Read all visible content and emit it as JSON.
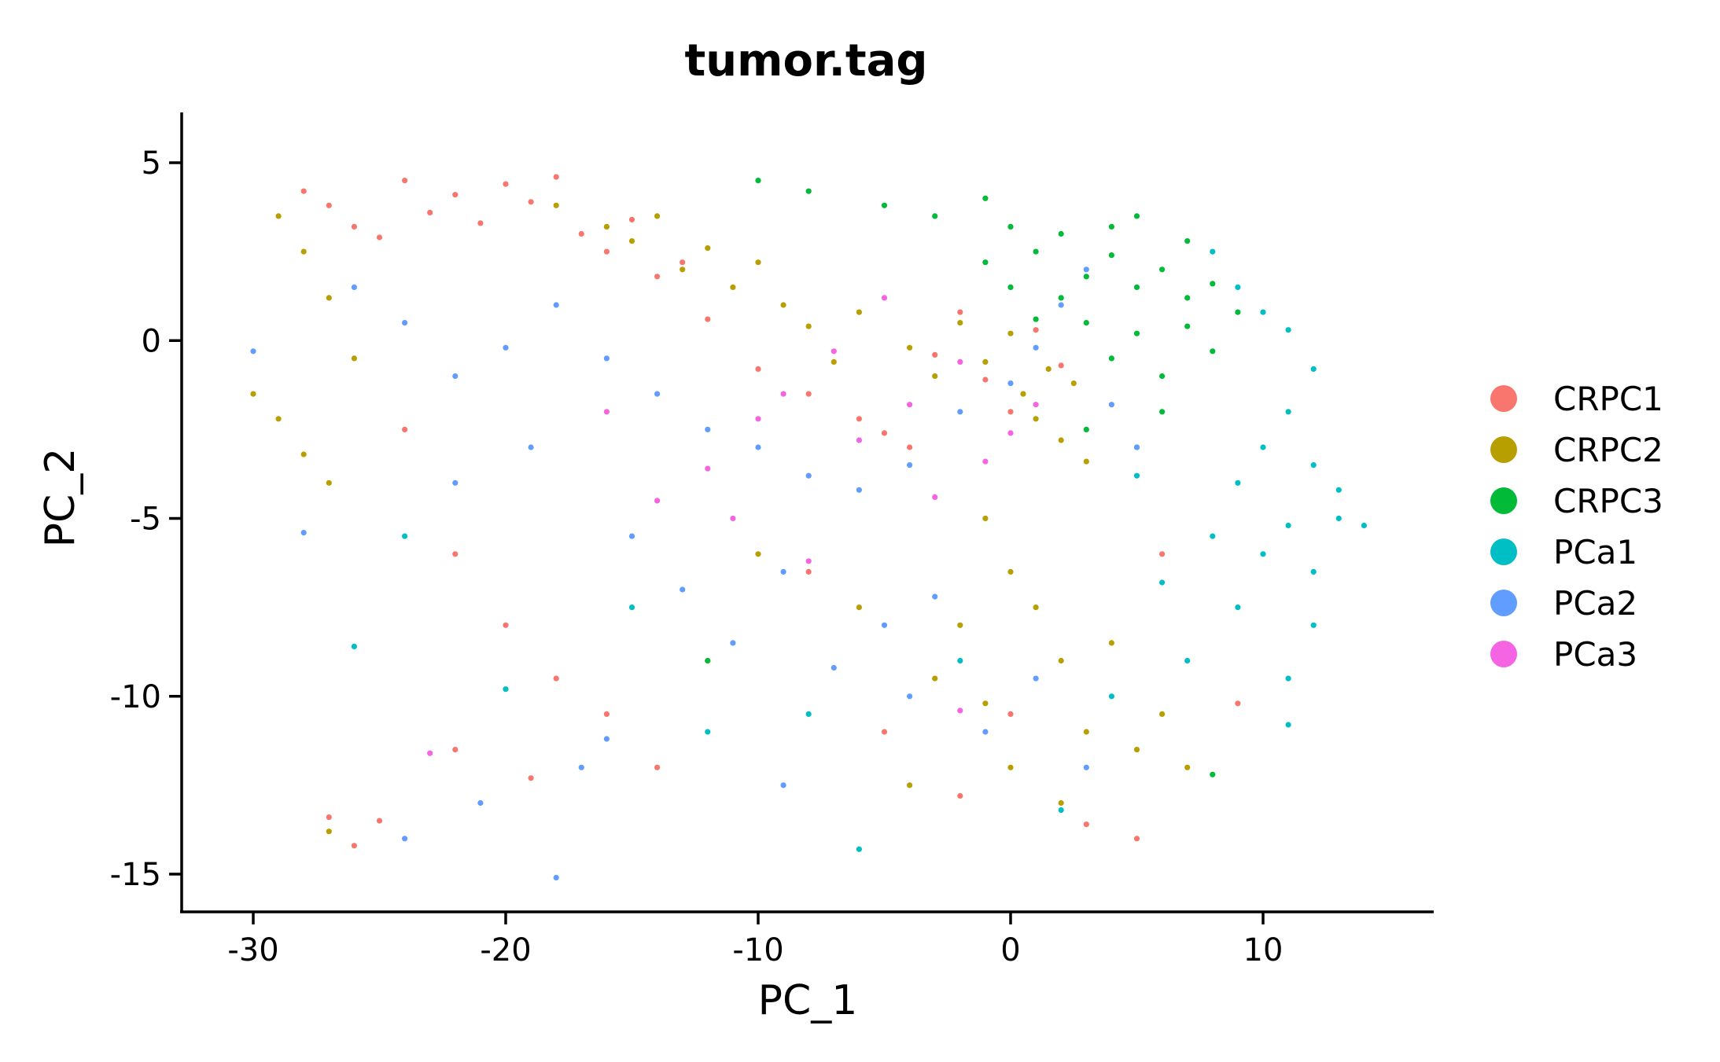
{
  "chart_data": {
    "type": "scatter",
    "title": "tumor.tag",
    "xlabel": "PC_1",
    "ylabel": "PC_2",
    "xlim": [
      -33,
      17
    ],
    "ylim": [
      -16.2,
      6.5
    ],
    "xticks": [
      -30,
      -20,
      -10,
      0,
      10
    ],
    "yticks": [
      5,
      0,
      -5,
      -10,
      -15
    ],
    "grid": false,
    "legend_position": "right",
    "series": [
      {
        "name": "CRPC1",
        "color": "#F8766D",
        "points": [
          [
            -28,
            4.2
          ],
          [
            -27,
            3.8
          ],
          [
            -26,
            3.2
          ],
          [
            -25,
            2.9
          ],
          [
            -24,
            4.5
          ],
          [
            -23,
            3.6
          ],
          [
            -22,
            4.1
          ],
          [
            -21,
            3.3
          ],
          [
            -20,
            4.4
          ],
          [
            -19,
            3.9
          ],
          [
            -18,
            4.6
          ],
          [
            -17,
            3.0
          ],
          [
            -16,
            2.5
          ],
          [
            -15,
            3.4
          ],
          [
            -14,
            1.8
          ],
          [
            -13,
            2.2
          ],
          [
            -12,
            0.6
          ],
          [
            -10,
            -0.8
          ],
          [
            -8,
            -1.5
          ],
          [
            -6,
            -2.2
          ],
          [
            -5,
            -2.6
          ],
          [
            -4,
            -3.0
          ],
          [
            -3,
            -0.4
          ],
          [
            -2,
            0.8
          ],
          [
            -1,
            -1.1
          ],
          [
            0,
            -2.0
          ],
          [
            1,
            0.3
          ],
          [
            2,
            -0.7
          ],
          [
            -24,
            -2.5
          ],
          [
            -22,
            -6.0
          ],
          [
            -20,
            -8.0
          ],
          [
            -18,
            -9.5
          ],
          [
            -16,
            -10.5
          ],
          [
            -14,
            -12.0
          ],
          [
            -25,
            -13.5
          ],
          [
            -26,
            -14.2
          ],
          [
            -27,
            -13.4
          ],
          [
            -22,
            -11.5
          ],
          [
            -19,
            -12.3
          ],
          [
            -12,
            -9.0
          ],
          [
            -8,
            -6.5
          ],
          [
            -5,
            -11.0
          ],
          [
            -2,
            -12.8
          ],
          [
            0,
            -10.5
          ],
          [
            3,
            -13.6
          ],
          [
            5,
            -14.0
          ],
          [
            6,
            -6.0
          ],
          [
            9,
            -10.2
          ]
        ]
      },
      {
        "name": "CRPC2",
        "color": "#B79F00",
        "points": [
          [
            -29,
            3.5
          ],
          [
            -28,
            2.5
          ],
          [
            -27,
            1.2
          ],
          [
            -26,
            -0.5
          ],
          [
            -30,
            -1.5
          ],
          [
            -29,
            -2.2
          ],
          [
            -28,
            -3.2
          ],
          [
            -27,
            -4.0
          ],
          [
            -18,
            3.8
          ],
          [
            -16,
            3.2
          ],
          [
            -15,
            2.8
          ],
          [
            -14,
            3.5
          ],
          [
            -13,
            2.0
          ],
          [
            -12,
            2.6
          ],
          [
            -11,
            1.5
          ],
          [
            -10,
            2.2
          ],
          [
            -9,
            1.0
          ],
          [
            -8,
            0.4
          ],
          [
            -7,
            -0.6
          ],
          [
            -6,
            0.8
          ],
          [
            -4,
            -0.2
          ],
          [
            -3,
            -1.0
          ],
          [
            -2,
            0.5
          ],
          [
            -1,
            -0.6
          ],
          [
            0,
            0.2
          ],
          [
            0.5,
            -1.5
          ],
          [
            1,
            -2.2
          ],
          [
            1.5,
            -0.8
          ],
          [
            2,
            -2.8
          ],
          [
            2.5,
            -1.2
          ],
          [
            3,
            -3.4
          ],
          [
            -1,
            -5.0
          ],
          [
            0,
            -6.5
          ],
          [
            1,
            -7.5
          ],
          [
            -2,
            -8.0
          ],
          [
            2,
            -9.0
          ],
          [
            -3,
            -9.5
          ],
          [
            4,
            -8.5
          ],
          [
            -1,
            -10.2
          ],
          [
            3,
            -11.0
          ],
          [
            0,
            -12.0
          ],
          [
            5,
            -11.5
          ],
          [
            -4,
            -12.5
          ],
          [
            2,
            -13.0
          ],
          [
            6,
            -10.5
          ],
          [
            7,
            -12.0
          ],
          [
            -27,
            -13.8
          ],
          [
            -10,
            -6.0
          ],
          [
            -6,
            -7.5
          ]
        ]
      },
      {
        "name": "CRPC3",
        "color": "#00BA38",
        "points": [
          [
            -10,
            4.5
          ],
          [
            -8,
            4.2
          ],
          [
            -5,
            3.8
          ],
          [
            -3,
            3.5
          ],
          [
            -1,
            4.0
          ],
          [
            0,
            3.2
          ],
          [
            1,
            2.5
          ],
          [
            2,
            3.0
          ],
          [
            3,
            1.8
          ],
          [
            4,
            2.4
          ],
          [
            5,
            1.5
          ],
          [
            6,
            2.0
          ],
          [
            7,
            1.2
          ],
          [
            8,
            1.6
          ],
          [
            9,
            0.8
          ],
          [
            3,
            0.5
          ],
          [
            4,
            -0.5
          ],
          [
            5,
            0.2
          ],
          [
            6,
            -1.0
          ],
          [
            7,
            0.4
          ],
          [
            8,
            -0.3
          ],
          [
            2,
            1.2
          ],
          [
            1,
            0.6
          ],
          [
            0,
            1.5
          ],
          [
            -1,
            2.2
          ],
          [
            5,
            3.5
          ],
          [
            7,
            2.8
          ],
          [
            4,
            3.2
          ],
          [
            6,
            -2.0
          ],
          [
            3,
            -2.5
          ],
          [
            -12,
            -9.0
          ],
          [
            8,
            -12.2
          ],
          [
            5,
            -3.0
          ]
        ]
      },
      {
        "name": "PCa1",
        "color": "#00BFC4",
        "points": [
          [
            8,
            2.5
          ],
          [
            9,
            1.5
          ],
          [
            10,
            0.8
          ],
          [
            11,
            0.3
          ],
          [
            12,
            -0.8
          ],
          [
            11,
            -2.0
          ],
          [
            12,
            -3.5
          ],
          [
            13,
            -4.2
          ],
          [
            10,
            -3.0
          ],
          [
            9,
            -4.0
          ],
          [
            11,
            -5.2
          ],
          [
            12,
            -6.5
          ],
          [
            10,
            -6.0
          ],
          [
            13,
            -5.0
          ],
          [
            14,
            -5.2
          ],
          [
            12,
            -8.0
          ],
          [
            11,
            -9.5
          ],
          [
            8,
            -5.5
          ],
          [
            6,
            -6.8
          ],
          [
            5,
            -3.8
          ],
          [
            -26,
            -8.6
          ],
          [
            -24,
            -5.5
          ],
          [
            -20,
            -9.8
          ],
          [
            -15,
            -7.5
          ],
          [
            -12,
            -11.0
          ],
          [
            -8,
            -10.5
          ],
          [
            -6,
            -14.3
          ],
          [
            -2,
            -9.0
          ],
          [
            2,
            -13.2
          ],
          [
            4,
            -10.0
          ],
          [
            11,
            -10.8
          ],
          [
            7,
            -9.0
          ],
          [
            9,
            -7.5
          ]
        ]
      },
      {
        "name": "PCa2",
        "color": "#619CFF",
        "points": [
          [
            -30,
            -0.3
          ],
          [
            -28,
            -5.4
          ],
          [
            -26,
            1.5
          ],
          [
            -24,
            0.5
          ],
          [
            -22,
            -1.0
          ],
          [
            -20,
            -0.2
          ],
          [
            -18,
            1.0
          ],
          [
            -16,
            -0.5
          ],
          [
            -14,
            -1.5
          ],
          [
            -12,
            -2.5
          ],
          [
            -10,
            -3.0
          ],
          [
            -8,
            -3.8
          ],
          [
            -6,
            -4.2
          ],
          [
            -4,
            -3.5
          ],
          [
            -2,
            -2.0
          ],
          [
            0,
            -1.2
          ],
          [
            1,
            -0.2
          ],
          [
            2,
            1.0
          ],
          [
            3,
            2.0
          ],
          [
            4,
            -1.8
          ],
          [
            5,
            -3.0
          ],
          [
            -15,
            -5.5
          ],
          [
            -13,
            -7.0
          ],
          [
            -11,
            -8.5
          ],
          [
            -9,
            -6.5
          ],
          [
            -7,
            -9.2
          ],
          [
            -5,
            -8.0
          ],
          [
            -3,
            -7.2
          ],
          [
            -1,
            -11.0
          ],
          [
            1,
            -9.5
          ],
          [
            3,
            -12.0
          ],
          [
            -18,
            -15.1
          ],
          [
            -24,
            -14.0
          ],
          [
            -21,
            -13.0
          ],
          [
            -17,
            -12.0
          ],
          [
            -22,
            -4.0
          ],
          [
            -19,
            -3.0
          ],
          [
            -16,
            -11.2
          ],
          [
            -9,
            -12.5
          ],
          [
            -4,
            -10.0
          ]
        ]
      },
      {
        "name": "PCa3",
        "color": "#F564E3",
        "points": [
          [
            -14,
            -4.5
          ],
          [
            -12,
            -3.6
          ],
          [
            -9,
            -1.5
          ],
          [
            -6,
            -2.8
          ],
          [
            -4,
            -1.8
          ],
          [
            -2,
            -0.6
          ],
          [
            -1,
            -3.4
          ],
          [
            0,
            -2.6
          ],
          [
            1,
            -1.8
          ],
          [
            -3,
            -4.4
          ],
          [
            -7,
            -0.3
          ],
          [
            -5,
            1.2
          ],
          [
            -11,
            -5.0
          ],
          [
            -16,
            -2.0
          ],
          [
            -8,
            -6.2
          ],
          [
            -10,
            -2.2
          ],
          [
            -23,
            -11.6
          ],
          [
            -2,
            -10.4
          ]
        ]
      }
    ]
  }
}
